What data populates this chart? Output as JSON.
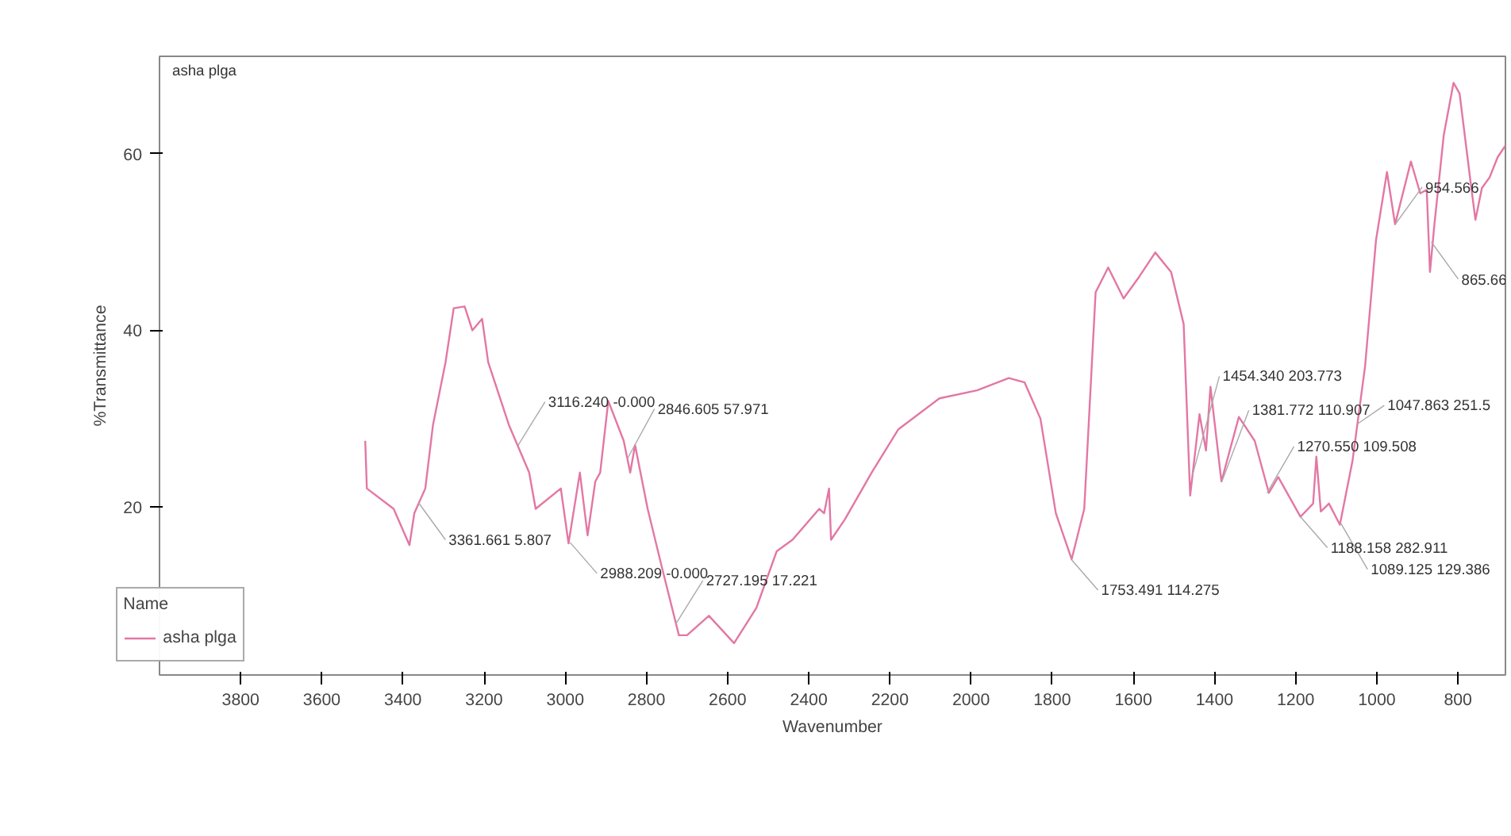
{
  "chart_data": {
    "type": "line",
    "xlabel": "Wavenumber",
    "ylabel": "%Transmittance",
    "legend_title": "Name",
    "x": [
      3493,
      3489,
      3423,
      3384,
      3372,
      3345,
      3326,
      3295,
      3275,
      3248,
      3229,
      3205,
      3190,
      3139,
      3089,
      3073,
      3011,
      2992,
      2964,
      2945,
      2926,
      2914,
      2894,
      2856,
      2840,
      2828,
      2797,
      2762,
      2720,
      2700,
      2646,
      2584,
      2529,
      2479,
      2440,
      2374,
      2362,
      2350,
      2345,
      2311,
      2245,
      2179,
      2078,
      1985,
      1907,
      1868,
      1829,
      1791,
      1752,
      1721,
      1693,
      1662,
      1624,
      1585,
      1546,
      1507,
      1476,
      1460,
      1437,
      1421,
      1410,
      1383,
      1340,
      1301,
      1266,
      1243,
      1188,
      1157,
      1149,
      1138,
      1118,
      1091,
      1060,
      1029,
      1002,
      975,
      955,
      916,
      893,
      877,
      869,
      858,
      835,
      811,
      796,
      769,
      757,
      741,
      722,
      702,
      683
    ],
    "series": [
      {
        "name": "asha plga",
        "color": "#e377a4",
        "values": [
          27.5,
          22.1,
          19.8,
          15.7,
          19.3,
          22.1,
          29.3,
          36.4,
          42.5,
          42.7,
          40,
          41.3,
          36.4,
          29.3,
          23.9,
          19.8,
          22.1,
          15.9,
          23.9,
          16.8,
          22.9,
          23.9,
          32,
          27.5,
          23.9,
          27,
          19.8,
          13.2,
          5.5,
          5.5,
          7.7,
          4.6,
          8.6,
          15,
          16.3,
          19.8,
          19.3,
          22.1,
          16.3,
          18.6,
          23.9,
          28.8,
          32.3,
          33.2,
          34.6,
          34.1,
          30,
          19.3,
          14.1,
          19.8,
          44.3,
          47.1,
          43.6,
          46.1,
          48.8,
          46.6,
          40.7,
          21.3,
          30.5,
          26.4,
          33.6,
          22.9,
          30.2,
          27.5,
          21.6,
          23.4,
          18.9,
          20.4,
          25.7,
          19.5,
          20.4,
          18,
          25.2,
          35.9,
          50.2,
          57.9,
          52,
          59.1,
          55.5,
          55.9,
          46.6,
          52,
          62.1,
          68,
          66.8,
          56.8,
          52.5,
          56.1,
          57.3,
          59.6,
          60.9
        ]
      }
    ],
    "xlim": [
      4000,
      683
    ],
    "xticks": [
      3800,
      3600,
      3400,
      3200,
      3000,
      2800,
      2600,
      2400,
      2200,
      2000,
      1800,
      1600,
      1400,
      1200,
      1000,
      800
    ],
    "ylim": [
      1,
      71
    ],
    "yticks": [
      20,
      40,
      60
    ],
    "grid": false,
    "legend": "bottom left",
    "marker": "none",
    "line_style": "solid",
    "annotations": [
      {
        "text": "3361.661 5.807",
        "x": 3361.661,
        "y": 20.5
      },
      {
        "text": "3116.240 -0.000",
        "x": 3116.24,
        "y": 27
      },
      {
        "text": "2988.209 -0.000",
        "x": 2988.209,
        "y": 16
      },
      {
        "text": "2846.605 57.971",
        "x": 2846.605,
        "y": 25.5
      },
      {
        "text": "2727.195 17.221",
        "x": 2727.195,
        "y": 6.8
      },
      {
        "text": "1753.491 114.275",
        "x": 1753.491,
        "y": 14.1
      },
      {
        "text": "1454.340 203.773",
        "x": 1454.34,
        "y": 23.6
      },
      {
        "text": "1381.772 110.907",
        "x": 1381.772,
        "y": 22.9
      },
      {
        "text": "1270.550 109.508",
        "x": 1270.55,
        "y": 21.6
      },
      {
        "text": "1188.158 282.911",
        "x": 1188.158,
        "y": 18.9
      },
      {
        "text": "1089.125 129.386",
        "x": 1089.125,
        "y": 18.2
      },
      {
        "text": "1047.863 251.5",
        "x": 1047.863,
        "y": 29.4
      },
      {
        "text": "954.566",
        "x": 954.566,
        "y": 52
      },
      {
        "text": "865.66",
        "x": 865.66,
        "y": 50
      }
    ]
  }
}
